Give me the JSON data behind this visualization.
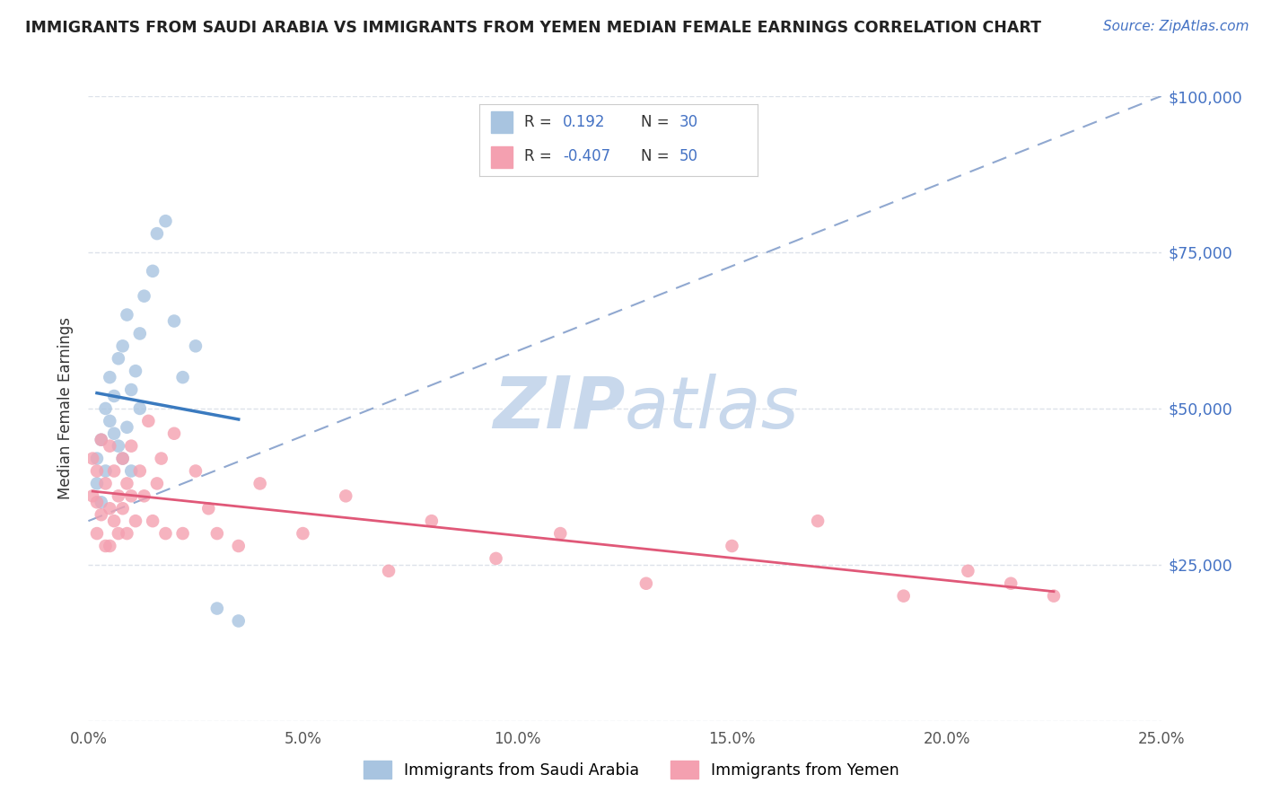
{
  "title": "IMMIGRANTS FROM SAUDI ARABIA VS IMMIGRANTS FROM YEMEN MEDIAN FEMALE EARNINGS CORRELATION CHART",
  "source_text": "Source: ZipAtlas.com",
  "ylabel": "Median Female Earnings",
  "xlabel_ticks": [
    "0.0%",
    "5.0%",
    "10.0%",
    "15.0%",
    "20.0%",
    "25.0%"
  ],
  "xlabel_vals": [
    0.0,
    0.05,
    0.1,
    0.15,
    0.2,
    0.25
  ],
  "ytick_vals": [
    0,
    25000,
    50000,
    75000,
    100000
  ],
  "ytick_labels": [
    "",
    "$25,000",
    "$50,000",
    "$75,000",
    "$100,000"
  ],
  "r_saudi": 0.192,
  "n_saudi": 30,
  "r_yemen": -0.407,
  "n_yemen": 50,
  "color_saudi": "#a8c4e0",
  "color_yemen": "#f4a0b0",
  "line_color_saudi": "#3a7abf",
  "line_color_yemen": "#e05878",
  "dashed_line_color": "#90a8d0",
  "watermark_zip": "ZIP",
  "watermark_atlas": "atlas",
  "watermark_color": "#c8d8ec",
  "saudi_x": [
    0.002,
    0.002,
    0.003,
    0.003,
    0.004,
    0.004,
    0.005,
    0.005,
    0.006,
    0.006,
    0.007,
    0.007,
    0.008,
    0.008,
    0.009,
    0.009,
    0.01,
    0.01,
    0.011,
    0.012,
    0.012,
    0.013,
    0.015,
    0.016,
    0.018,
    0.02,
    0.022,
    0.025,
    0.03,
    0.035
  ],
  "saudi_y": [
    42000,
    38000,
    45000,
    35000,
    50000,
    40000,
    55000,
    48000,
    52000,
    46000,
    58000,
    44000,
    60000,
    42000,
    65000,
    47000,
    53000,
    40000,
    56000,
    62000,
    50000,
    68000,
    72000,
    78000,
    80000,
    64000,
    55000,
    60000,
    18000,
    16000
  ],
  "yemen_x": [
    0.001,
    0.001,
    0.002,
    0.002,
    0.002,
    0.003,
    0.003,
    0.004,
    0.004,
    0.005,
    0.005,
    0.005,
    0.006,
    0.006,
    0.007,
    0.007,
    0.008,
    0.008,
    0.009,
    0.009,
    0.01,
    0.01,
    0.011,
    0.012,
    0.013,
    0.014,
    0.015,
    0.016,
    0.017,
    0.018,
    0.02,
    0.022,
    0.025,
    0.028,
    0.03,
    0.035,
    0.04,
    0.05,
    0.06,
    0.07,
    0.08,
    0.095,
    0.11,
    0.13,
    0.15,
    0.17,
    0.19,
    0.205,
    0.215,
    0.225
  ],
  "yemen_y": [
    42000,
    36000,
    40000,
    35000,
    30000,
    45000,
    33000,
    38000,
    28000,
    44000,
    34000,
    28000,
    40000,
    32000,
    36000,
    30000,
    42000,
    34000,
    38000,
    30000,
    44000,
    36000,
    32000,
    40000,
    36000,
    48000,
    32000,
    38000,
    42000,
    30000,
    46000,
    30000,
    40000,
    34000,
    30000,
    28000,
    38000,
    30000,
    36000,
    24000,
    32000,
    26000,
    30000,
    22000,
    28000,
    32000,
    20000,
    24000,
    22000,
    20000
  ],
  "xlim": [
    0.0,
    0.25
  ],
  "ylim": [
    0,
    100000
  ],
  "background_color": "#ffffff",
  "plot_bg_color": "#ffffff",
  "grid_color": "#dde2ea"
}
